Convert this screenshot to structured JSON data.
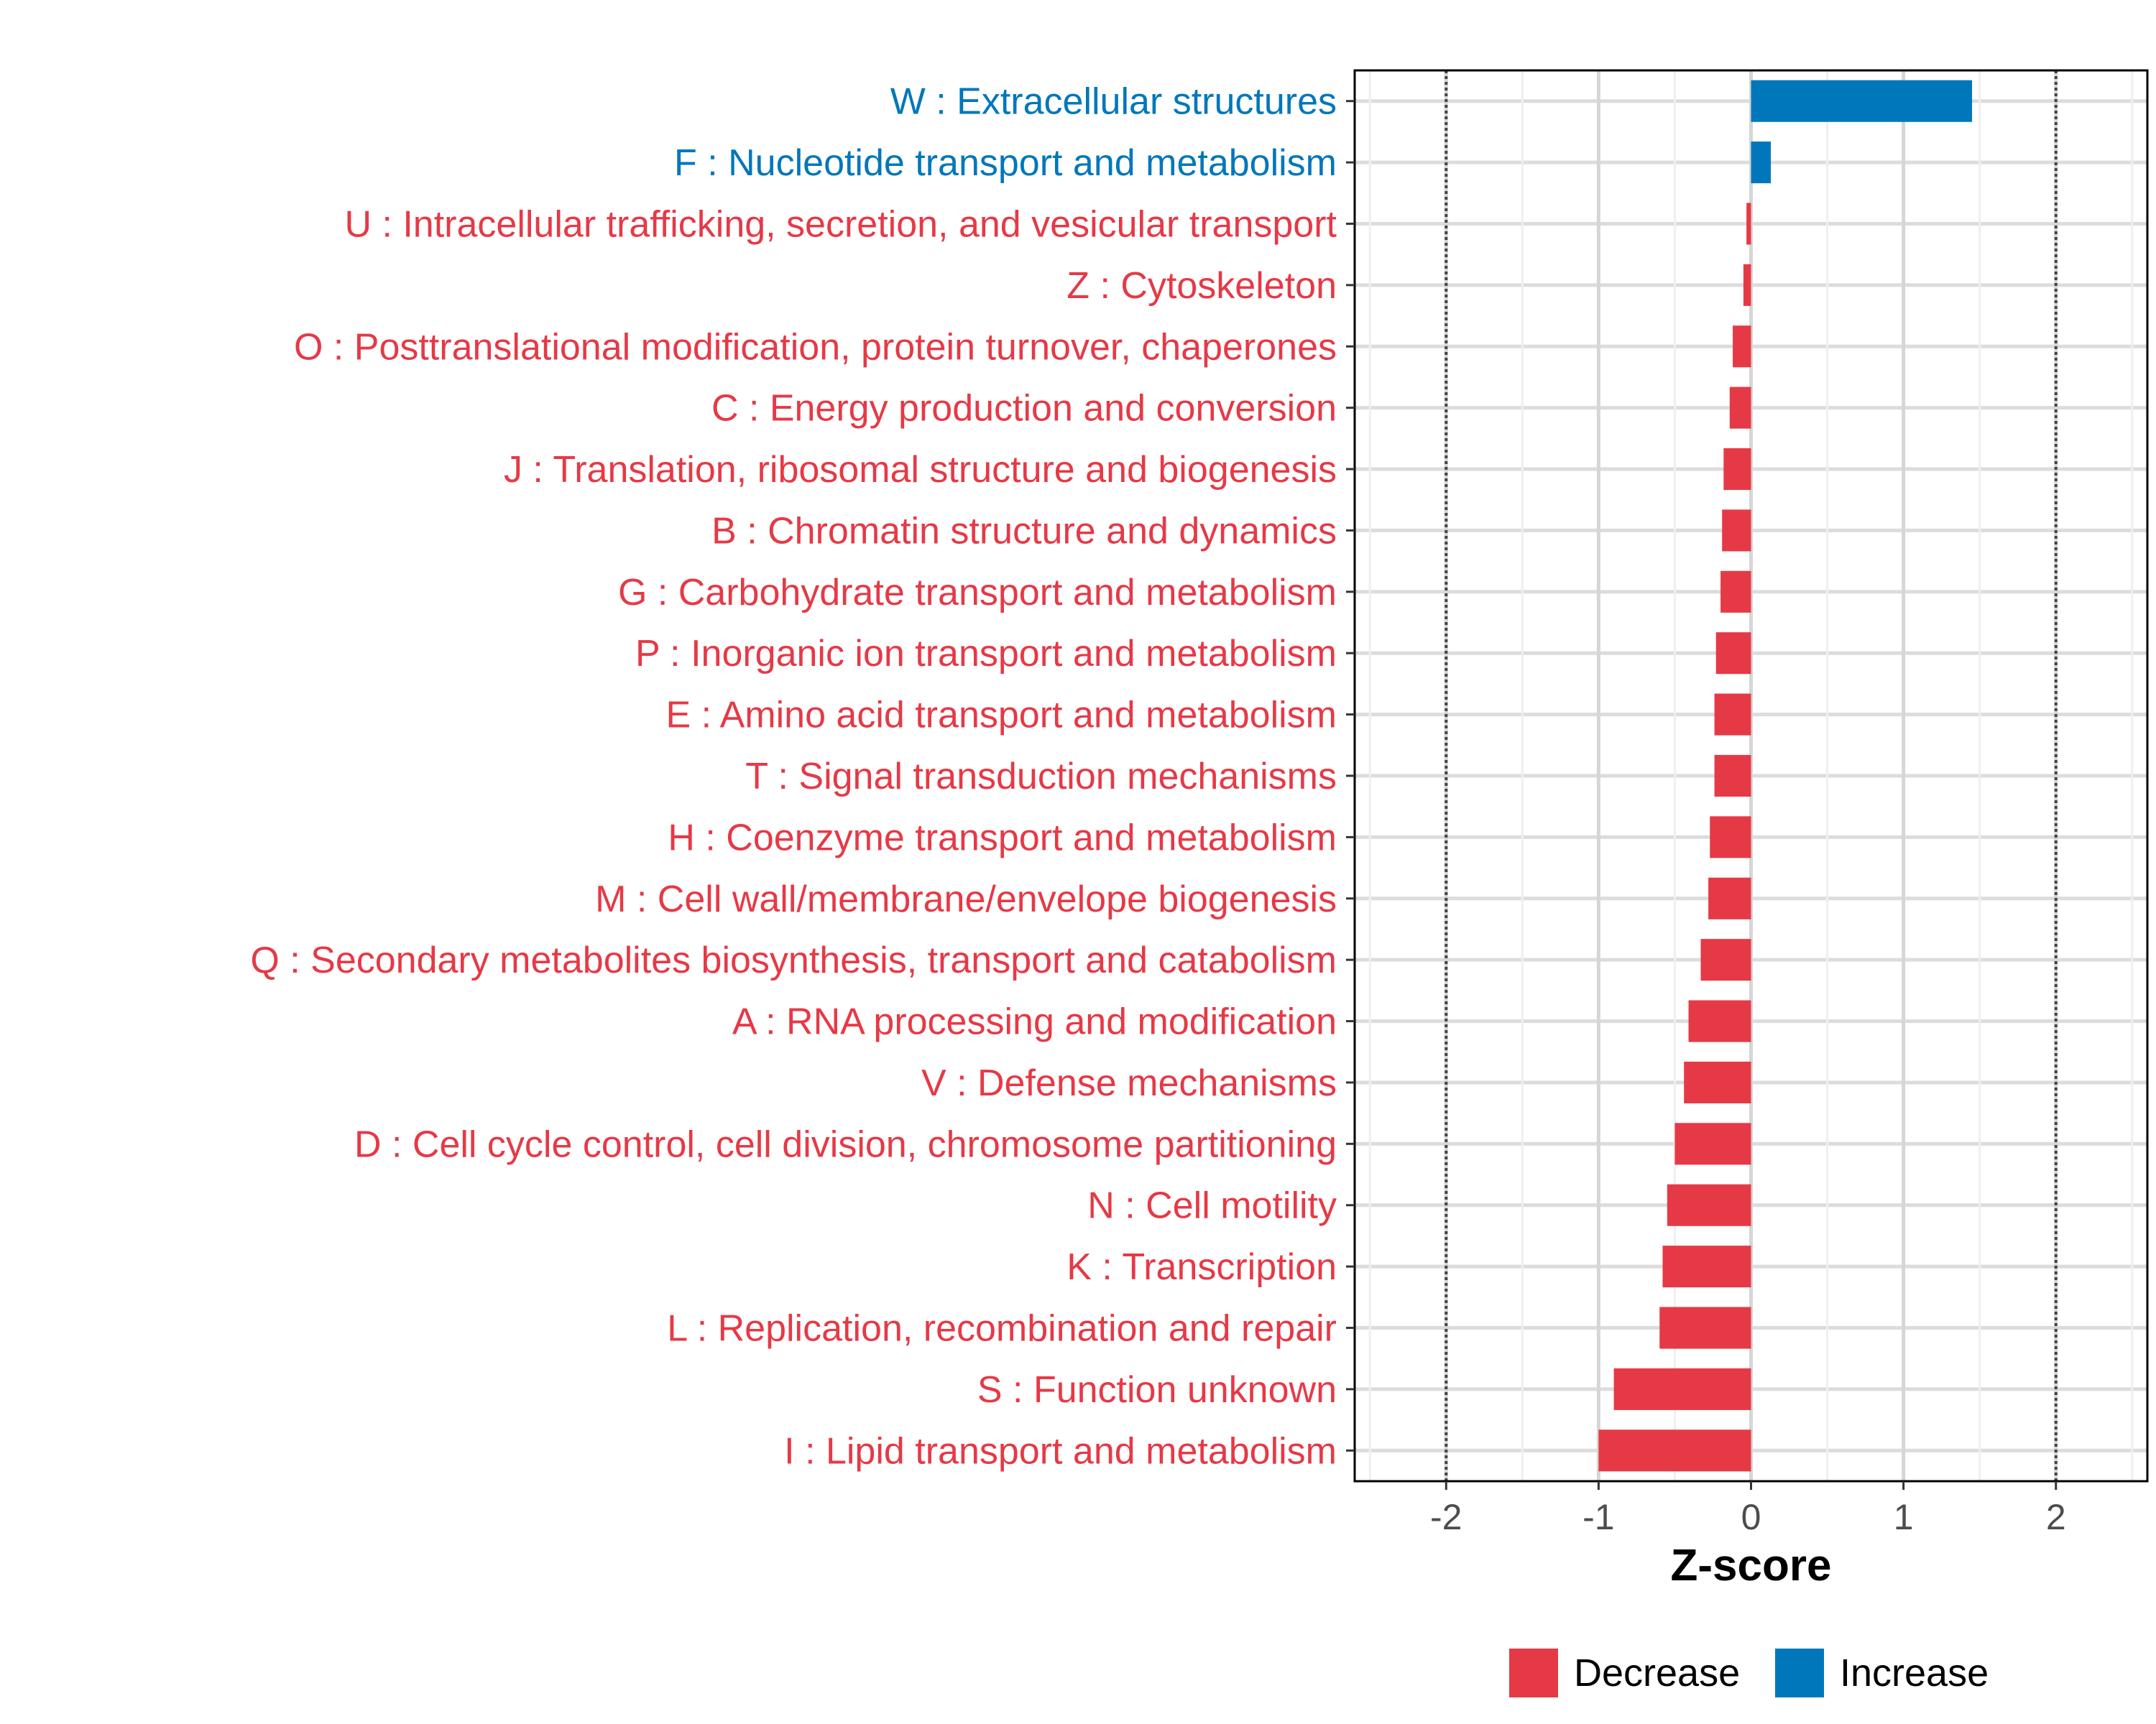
{
  "chart_data": {
    "type": "bar",
    "orientation": "horizontal",
    "xlabel": "Z-score",
    "xlim": [
      -2.6,
      2.6
    ],
    "x_ticks": [
      -2,
      -1,
      0,
      1,
      2
    ],
    "x_tick_labels": [
      "-2",
      "-1",
      "0",
      "1",
      "2"
    ],
    "reference_lines": [
      -2,
      2
    ],
    "grid": true,
    "categories": [
      "W : Extracellular structures",
      "F : Nucleotide transport and metabolism",
      "U : Intracellular trafficking, secretion, and vesicular transport",
      "Z : Cytoskeleton",
      "O : Posttranslational modification, protein turnover, chaperones",
      "C : Energy production and conversion",
      "J : Translation, ribosomal structure and biogenesis",
      "B : Chromatin structure and dynamics",
      "G : Carbohydrate transport and metabolism",
      "P : Inorganic ion transport and metabolism",
      "E : Amino acid transport and metabolism",
      "T : Signal transduction mechanisms",
      "H : Coenzyme transport and metabolism",
      "M : Cell wall/membrane/envelope biogenesis",
      "Q : Secondary metabolites biosynthesis, transport and catabolism",
      "A : RNA processing and modification",
      "V : Defense mechanisms",
      "D : Cell cycle control, cell division, chromosome partitioning",
      "N : Cell motility",
      "K : Transcription",
      "L : Replication, recombination and repair",
      "S : Function unknown",
      "I : Lipid transport and metabolism"
    ],
    "values": [
      1.45,
      0.13,
      -0.03,
      -0.05,
      -0.12,
      -0.14,
      -0.18,
      -0.19,
      -0.2,
      -0.23,
      -0.24,
      -0.24,
      -0.27,
      -0.28,
      -0.33,
      -0.41,
      -0.44,
      -0.5,
      -0.55,
      -0.58,
      -0.6,
      -0.9,
      -1.0
    ],
    "series_colors": {
      "Decrease": "#e63946",
      "Increase": "#0077bb"
    },
    "legend": {
      "position": "bottom",
      "items": [
        {
          "label": "Decrease",
          "color": "#e63946"
        },
        {
          "label": "Increase",
          "color": "#0077bb"
        }
      ]
    }
  }
}
